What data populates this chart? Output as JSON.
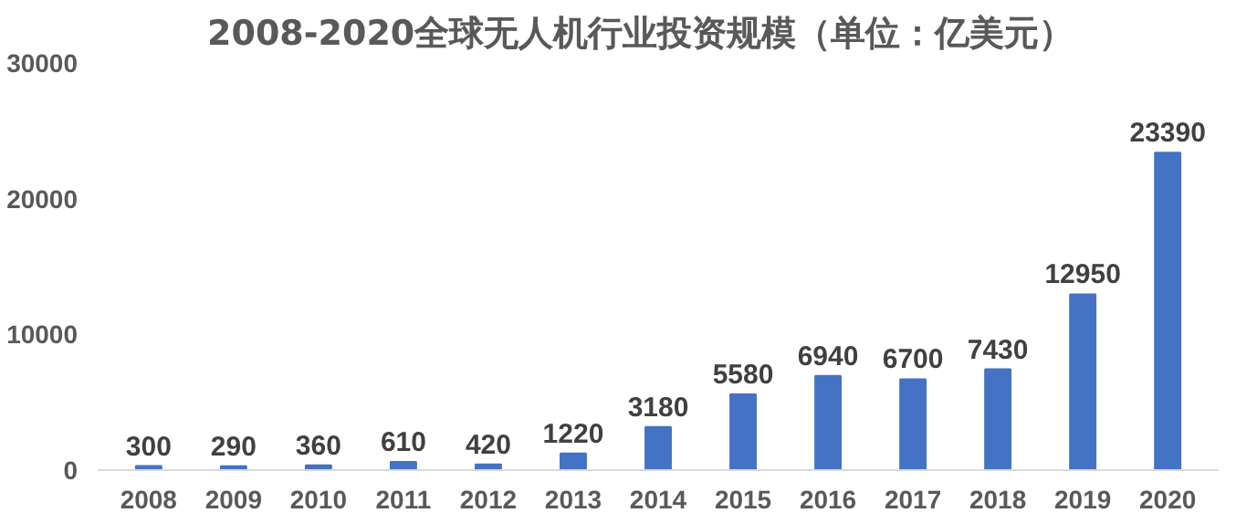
{
  "chart_data": {
    "type": "bar",
    "title": "2008-2020全球无人机行业投资规模（单位：亿美元）",
    "categories": [
      "2008",
      "2009",
      "2010",
      "2011",
      "2012",
      "2013",
      "2014",
      "2015",
      "2016",
      "2017",
      "2018",
      "2019",
      "2020"
    ],
    "values": [
      300,
      290,
      360,
      610,
      420,
      1220,
      3180,
      5580,
      6940,
      6700,
      7430,
      12950,
      23390
    ],
    "color": "#4472c4",
    "ylim": [
      0,
      30000
    ],
    "yticks": [
      0,
      10000,
      20000,
      30000
    ],
    "grid": false,
    "data_labels": true
  }
}
